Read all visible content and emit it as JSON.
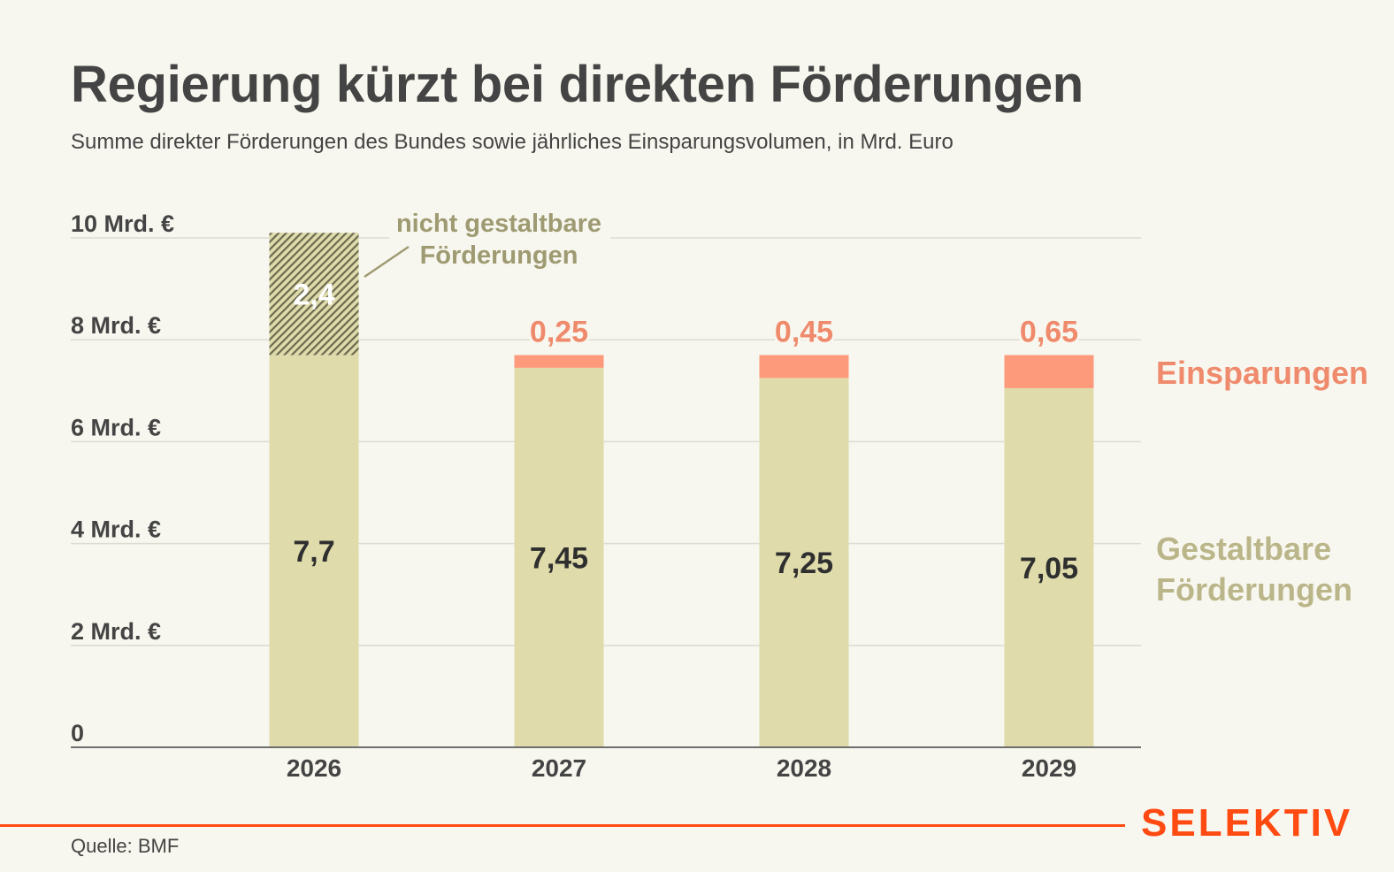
{
  "header": {
    "title": "Regierung kürzt bei direkten Förderungen",
    "subtitle": "Summe direkter Förderungen des Bundes sowie jährliches Einsparungsvolumen, in Mrd. Euro"
  },
  "footer": {
    "source": "Quelle: BMF",
    "brand": "SELEKTIV"
  },
  "colors": {
    "background": "#f8f7ef",
    "gestaltbar": "#dfdbab",
    "einsparung": "#fe9a7c",
    "einsparung_label": "#ef8a6c",
    "nicht_gestaltbar_hatch": "#6b6a50",
    "annotation": "#9e9a72",
    "legend_gestaltbar": "#bab68a",
    "axis_text": "#444444",
    "bar_label": "#2f2f2f",
    "grid": "#dcdbd2",
    "brand": "#ff4a12"
  },
  "chart_data": {
    "type": "bar",
    "stacked": true,
    "title": "Regierung kürzt bei direkten Förderungen",
    "subtitle": "Summe direkter Förderungen des Bundes sowie jährliches Einsparungsvolumen, in Mrd. Euro",
    "xlabel": "",
    "ylabel": "",
    "ylim": [
      0,
      10
    ],
    "yticks": [
      0,
      2,
      4,
      6,
      8,
      10
    ],
    "ytick_labels": [
      "0",
      "2 Mrd. €",
      "4 Mrd. €",
      "6 Mrd. €",
      "8 Mrd. €",
      "10 Mrd. €"
    ],
    "grid": true,
    "categories": [
      "2026",
      "2027",
      "2028",
      "2029"
    ],
    "series": [
      {
        "name": "Gestaltbare Förderungen",
        "values": [
          7.7,
          7.45,
          7.25,
          7.05
        ],
        "labels": [
          "7,7",
          "7,45",
          "7,25",
          "7,05"
        ]
      },
      {
        "name": "Einsparungen",
        "values": [
          0,
          0.25,
          0.45,
          0.65
        ],
        "labels": [
          "",
          "0,25",
          "0,45",
          "0,65"
        ]
      },
      {
        "name": "nicht gestaltbare Förderungen",
        "values": [
          2.4,
          0,
          0,
          0
        ],
        "labels": [
          "2,4",
          "",
          "",
          ""
        ]
      }
    ],
    "legend": {
      "placement": "right",
      "entries": [
        "Einsparungen",
        "Gestaltbare Förderungen"
      ],
      "entry_lines": [
        [
          "Einsparungen"
        ],
        [
          "Gestaltbare",
          "Förderungen"
        ]
      ]
    },
    "annotations": [
      {
        "text_lines": [
          "nicht gestaltbare",
          "Förderungen"
        ],
        "target": "2026"
      }
    ]
  }
}
